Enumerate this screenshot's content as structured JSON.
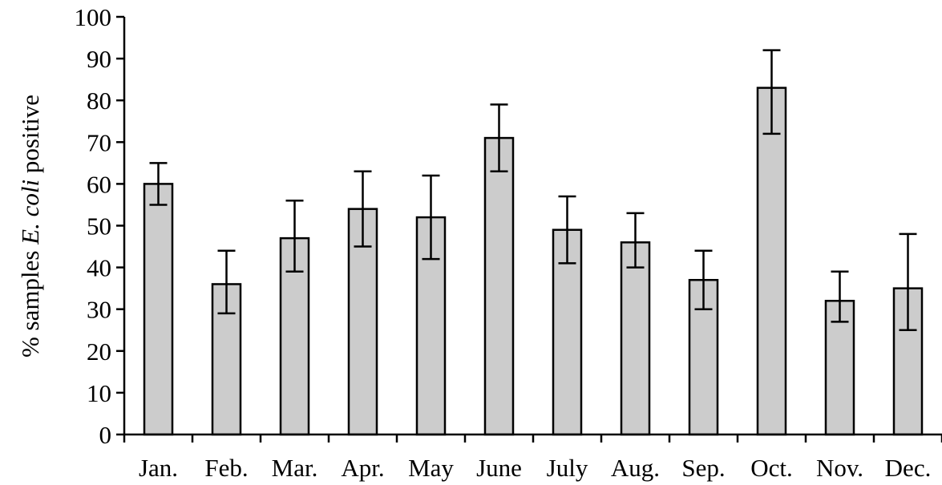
{
  "chart_data": {
    "type": "bar",
    "title": "",
    "xlabel": "",
    "ylabel": {
      "prefix": "% samples ",
      "italic": "E. coli",
      "suffix": " positive"
    },
    "ylim": [
      0,
      100
    ],
    "yticks": [
      0,
      10,
      20,
      30,
      40,
      50,
      60,
      70,
      80,
      90,
      100
    ],
    "categories": [
      "Jan.",
      "Feb.",
      "Mar.",
      "Apr.",
      "May",
      "June",
      "July",
      "Aug.",
      "Sep.",
      "Oct.",
      "Nov.",
      "Dec."
    ],
    "values": [
      60,
      36,
      47,
      54,
      52,
      71,
      49,
      46,
      37,
      83,
      32,
      35
    ],
    "error_bars": [
      {
        "low": 55,
        "high": 65
      },
      {
        "low": 29,
        "high": 44
      },
      {
        "low": 39,
        "high": 56
      },
      {
        "low": 45,
        "high": 63
      },
      {
        "low": 42,
        "high": 62
      },
      {
        "low": 63,
        "high": 79
      },
      {
        "low": 41,
        "high": 57
      },
      {
        "low": 40,
        "high": 53
      },
      {
        "low": 30,
        "high": 44
      },
      {
        "low": 72,
        "high": 92
      },
      {
        "low": 27,
        "high": 39
      },
      {
        "low": 25,
        "high": 48
      }
    ],
    "bar_color": "#cccccc",
    "grid": false,
    "legend": "none"
  }
}
